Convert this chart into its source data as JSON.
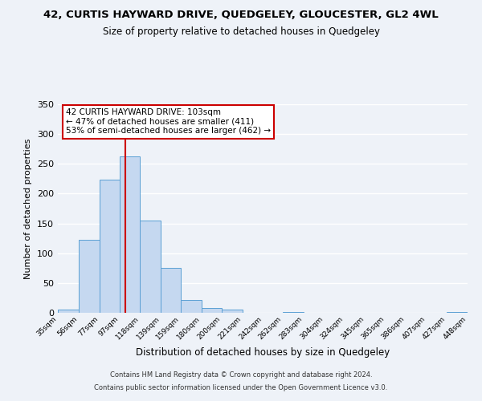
{
  "title": "42, CURTIS HAYWARD DRIVE, QUEDGELEY, GLOUCESTER, GL2 4WL",
  "subtitle": "Size of property relative to detached houses in Quedgeley",
  "xlabel": "Distribution of detached houses by size in Quedgeley",
  "ylabel": "Number of detached properties",
  "bar_edges": [
    35,
    56,
    77,
    97,
    118,
    139,
    159,
    180,
    200,
    221,
    242,
    262,
    283,
    304,
    324,
    345,
    365,
    386,
    407,
    427,
    448
  ],
  "bar_heights": [
    6,
    123,
    224,
    262,
    155,
    76,
    21,
    8,
    5,
    0,
    0,
    2,
    0,
    0,
    0,
    0,
    0,
    0,
    0,
    2
  ],
  "bar_color": "#c5d8f0",
  "bar_edge_color": "#5a9fd4",
  "vline_x": 103,
  "vline_color": "#cc0000",
  "ylim": [
    0,
    350
  ],
  "yticks": [
    0,
    50,
    100,
    150,
    200,
    250,
    300,
    350
  ],
  "annotation_title": "42 CURTIS HAYWARD DRIVE: 103sqm",
  "annotation_line1": "← 47% of detached houses are smaller (411)",
  "annotation_line2": "53% of semi-detached houses are larger (462) →",
  "annotation_box_color": "#ffffff",
  "annotation_box_edge": "#cc0000",
  "footer_line1": "Contains HM Land Registry data © Crown copyright and database right 2024.",
  "footer_line2": "Contains public sector information licensed under the Open Government Licence v3.0.",
  "background_color": "#eef2f8",
  "grid_color": "#ffffff",
  "tick_labels": [
    "35sqm",
    "56sqm",
    "77sqm",
    "97sqm",
    "118sqm",
    "139sqm",
    "159sqm",
    "180sqm",
    "200sqm",
    "221sqm",
    "242sqm",
    "262sqm",
    "283sqm",
    "304sqm",
    "324sqm",
    "345sqm",
    "365sqm",
    "386sqm",
    "407sqm",
    "427sqm",
    "448sqm"
  ]
}
